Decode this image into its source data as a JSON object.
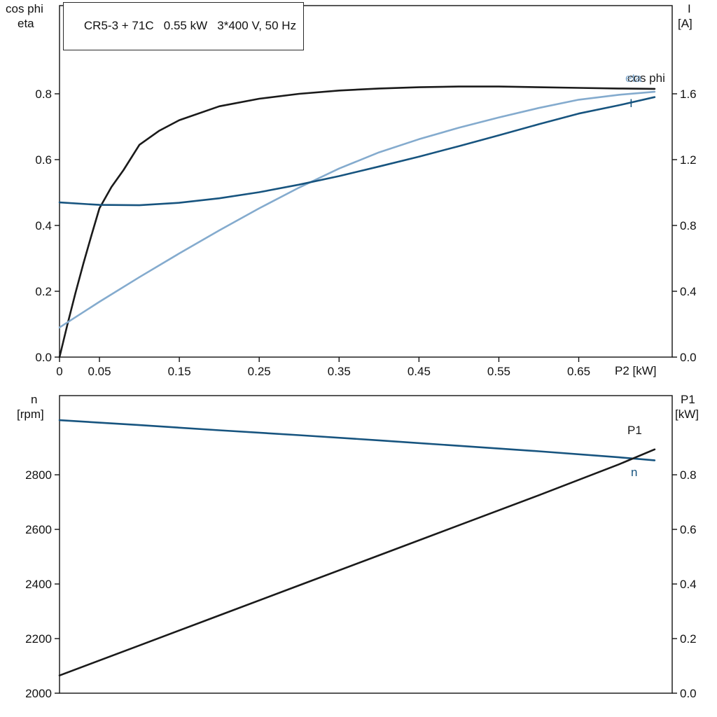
{
  "colors": {
    "black": "#1a1a1a",
    "dark_blue": "#17547F",
    "light_blue": "#84ABCE",
    "axis": "#111111"
  },
  "chart_data": [
    {
      "type": "line",
      "title": "CR5-3 + 71C   0.55 kW   3*400 V, 50 Hz",
      "x_axis": {
        "label": "P2 [kW]",
        "ticks": [
          0,
          0.05,
          0.15,
          0.25,
          0.35,
          0.45,
          0.55,
          0.65
        ],
        "tick_labels": [
          "0",
          "0.05",
          "0.15",
          "0.25",
          "0.35",
          "0.45",
          "0.55",
          "0.65"
        ],
        "range": [
          0,
          0.767
        ]
      },
      "y_left": {
        "label_lines": [
          "cos phi",
          "eta"
        ],
        "ticks": [
          0,
          0.2,
          0.4,
          0.6,
          0.8
        ],
        "tick_labels": [
          "0.0",
          "0.2",
          "0.4",
          "0.6",
          "0.8"
        ],
        "range": [
          0,
          1.068
        ]
      },
      "y_right": {
        "label_lines": [
          "I",
          "[A]"
        ],
        "ticks": [
          0,
          0.4,
          0.8,
          1.2,
          1.6
        ],
        "tick_labels": [
          "0.0",
          "0.4",
          "0.8",
          "1.2",
          "1.6"
        ],
        "range": [
          0,
          2.136
        ]
      },
      "grid": false,
      "series": [
        {
          "name": "cos phi",
          "label": "cos phi",
          "axis": "left",
          "color": "black",
          "x": [
            0,
            0.005,
            0.01,
            0.02,
            0.03,
            0.04,
            0.05,
            0.065,
            0.08,
            0.1,
            0.125,
            0.15,
            0.2,
            0.25,
            0.3,
            0.35,
            0.4,
            0.45,
            0.5,
            0.55,
            0.6,
            0.65,
            0.7,
            0.745
          ],
          "y": [
            0,
            0.05,
            0.1,
            0.195,
            0.285,
            0.37,
            0.452,
            0.517,
            0.568,
            0.645,
            0.688,
            0.72,
            0.762,
            0.785,
            0.8,
            0.81,
            0.816,
            0.82,
            0.822,
            0.822,
            0.82,
            0.818,
            0.816,
            0.815
          ]
        },
        {
          "name": "eta",
          "label": "eta",
          "axis": "left",
          "color": "light_blue",
          "x": [
            0,
            0.05,
            0.1,
            0.15,
            0.2,
            0.25,
            0.3,
            0.35,
            0.4,
            0.45,
            0.5,
            0.55,
            0.6,
            0.65,
            0.7,
            0.745
          ],
          "y": [
            0.09,
            0.168,
            0.243,
            0.315,
            0.385,
            0.452,
            0.515,
            0.573,
            0.622,
            0.662,
            0.697,
            0.728,
            0.757,
            0.782,
            0.797,
            0.806
          ]
        },
        {
          "name": "I",
          "label": "I",
          "axis": "right",
          "color": "dark_blue",
          "x": [
            0,
            0.05,
            0.1,
            0.15,
            0.2,
            0.25,
            0.3,
            0.35,
            0.4,
            0.45,
            0.5,
            0.55,
            0.6,
            0.65,
            0.7,
            0.745
          ],
          "y": [
            0.94,
            0.925,
            0.923,
            0.938,
            0.965,
            1.002,
            1.048,
            1.1,
            1.158,
            1.218,
            1.282,
            1.348,
            1.415,
            1.48,
            1.53,
            1.58
          ]
        }
      ]
    },
    {
      "type": "line",
      "title": "",
      "x_axis": {
        "label": "",
        "ticks": [],
        "tick_labels": [],
        "range": [
          0,
          0.767
        ]
      },
      "y_left": {
        "label_lines": [
          "n",
          "[rpm]"
        ],
        "ticks": [
          2000,
          2200,
          2400,
          2600,
          2800
        ],
        "tick_labels": [
          "2000",
          "2200",
          "2400",
          "2600",
          "2800"
        ],
        "range": [
          2000,
          3090
        ]
      },
      "y_right": {
        "label_lines": [
          "P1",
          "[kW]"
        ],
        "ticks": [
          0,
          0.2,
          0.4,
          0.6,
          0.8
        ],
        "tick_labels": [
          "0.0",
          "0.2",
          "0.4",
          "0.6",
          "0.8"
        ],
        "range": [
          0,
          1.09
        ]
      },
      "grid": false,
      "series": [
        {
          "name": "n",
          "label": "n",
          "axis": "left",
          "color": "dark_blue",
          "x": [
            0,
            0.1,
            0.2,
            0.3,
            0.4,
            0.5,
            0.6,
            0.7,
            0.745
          ],
          "y": [
            3000,
            2982,
            2963,
            2945,
            2926,
            2906,
            2886,
            2864,
            2853
          ]
        },
        {
          "name": "P1",
          "label": "P1",
          "axis": "right",
          "color": "black",
          "x": [
            0,
            0.1,
            0.2,
            0.3,
            0.4,
            0.5,
            0.6,
            0.7,
            0.745
          ],
          "y": [
            0.065,
            0.175,
            0.285,
            0.395,
            0.505,
            0.615,
            0.725,
            0.838,
            0.893
          ]
        }
      ]
    }
  ]
}
